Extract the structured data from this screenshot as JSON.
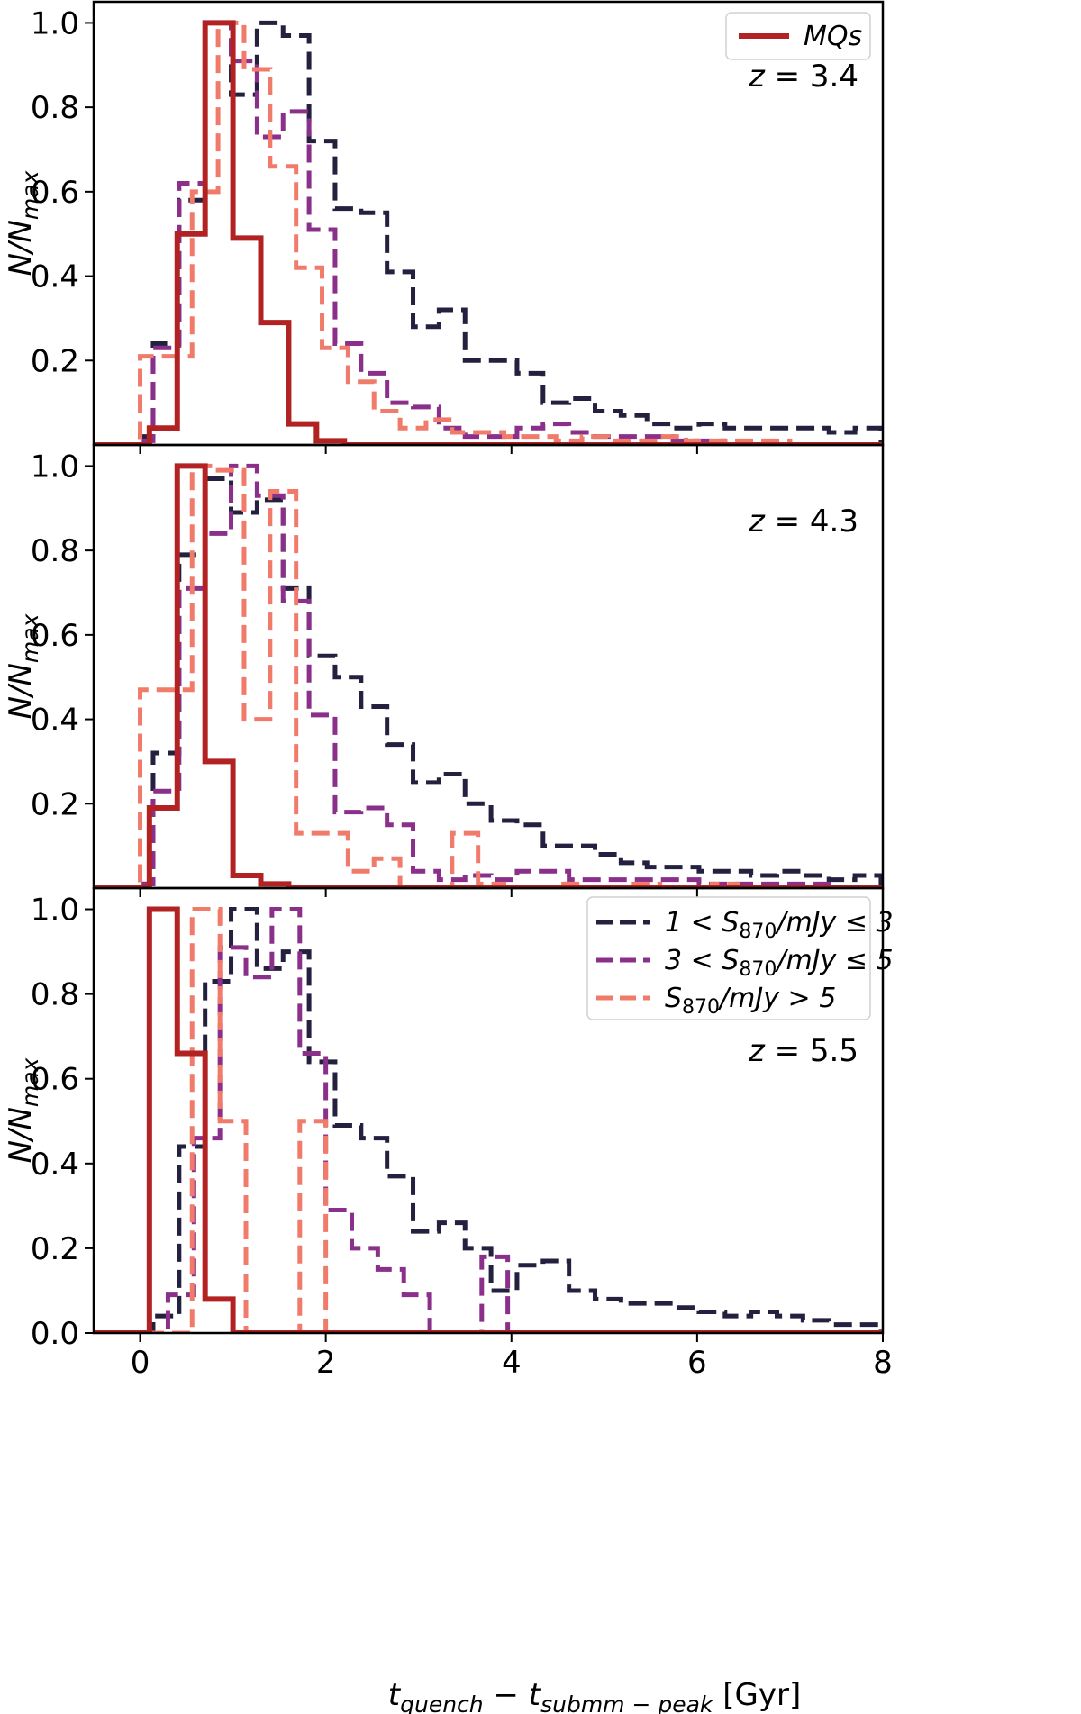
{
  "figure": {
    "xlabel": "t_quench − t_submm−peak [Gyr]",
    "xlabel_parts": {
      "t1": "t",
      "s1": "quench",
      "minus": " − t",
      "s2": "submm − peak",
      "unit": " [Gyr]"
    },
    "ylabel_parts": {
      "n": "N/N",
      "sub": "max"
    }
  },
  "colors": {
    "mqs": "#b22222",
    "bin1": "#23213f",
    "bin2": "#8a2f8a",
    "bin3": "#f07b6b"
  },
  "chart_data": [
    {
      "type": "step-histogram",
      "panel": "top",
      "annotation": "z = 3.4",
      "annotation_parts": {
        "var": "z",
        "eq": " = 3.4"
      },
      "xlim": [
        -0.5,
        8
      ],
      "ylim": [
        0,
        1.05
      ],
      "xticks": [
        0,
        2,
        4,
        6,
        8
      ],
      "yticks": [
        0.2,
        0.4,
        0.6,
        0.8,
        1.0
      ],
      "ytick_labels": [
        "0.2",
        "0.4",
        "0.6",
        "0.8",
        "1.0"
      ],
      "legend": {
        "placement": "top-right",
        "entries": [
          {
            "label": "MQs",
            "series": "mqs"
          }
        ]
      },
      "series": [
        {
          "key": "bin1",
          "name": "1 < S870/mJy ≤ 3",
          "style": "dashed",
          "edges": [
            0,
            0.14,
            0.42,
            0.7,
            0.98,
            1.26,
            1.54,
            1.82,
            2.1,
            2.38,
            2.66,
            2.94,
            3.22,
            3.5,
            3.78,
            4.06,
            4.34,
            4.62,
            4.9,
            5.18,
            5.46,
            5.74,
            6.02,
            6.3,
            6.58,
            6.86,
            7.14,
            7.42,
            7.7,
            7.98
          ],
          "values": [
            0.02,
            0.24,
            0.58,
            1.0,
            0.83,
            1.0,
            0.97,
            0.72,
            0.56,
            0.55,
            0.41,
            0.28,
            0.32,
            0.2,
            0.2,
            0.17,
            0.1,
            0.11,
            0.08,
            0.07,
            0.05,
            0.04,
            0.05,
            0.04,
            0.04,
            0.04,
            0.04,
            0.03,
            0.04
          ]
        },
        {
          "key": "bin2",
          "name": "3 < S870/mJy ≤ 5",
          "style": "dashed",
          "edges": [
            0,
            0.14,
            0.42,
            0.7,
            0.98,
            1.26,
            1.54,
            1.82,
            2.1,
            2.38,
            2.66,
            2.94,
            3.22,
            3.5,
            3.78,
            4.06,
            4.34,
            4.62,
            4.9,
            5.18,
            5.46,
            5.74,
            6.02,
            6.3
          ],
          "values": [
            0.01,
            0.23,
            0.62,
            1.0,
            0.91,
            0.73,
            0.79,
            0.51,
            0.24,
            0.17,
            0.1,
            0.09,
            0.04,
            0.02,
            0.02,
            0.04,
            0.05,
            0.03,
            0.02,
            0.02,
            0.02,
            0.01,
            0.01
          ]
        },
        {
          "key": "bin3",
          "name": "S870/mJy > 5",
          "style": "dashed",
          "edges": [
            0,
            0.56,
            0.84,
            1.12,
            1.4,
            1.68,
            1.96,
            2.24,
            2.52,
            2.8,
            3.08,
            3.36,
            3.64,
            3.92,
            4.2,
            4.48,
            4.76,
            5.04,
            5.32,
            5.6,
            5.88,
            6.16,
            6.44,
            6.72,
            7.0
          ],
          "values": [
            0.21,
            0.6,
            1.0,
            0.89,
            0.66,
            0.42,
            0.23,
            0.15,
            0.08,
            0.04,
            0.06,
            0.03,
            0.03,
            0.02,
            0.02,
            0.01,
            0.02,
            0.01,
            0.01,
            0.02,
            0.01,
            0.01,
            0.01,
            0.01
          ]
        },
        {
          "key": "mqs",
          "name": "MQs",
          "style": "solid",
          "edges": [
            0.1,
            0.4,
            0.7,
            1.0,
            1.3,
            1.6,
            1.9,
            2.2
          ],
          "values": [
            0.04,
            0.5,
            1.0,
            0.49,
            0.29,
            0.05,
            0.01
          ]
        }
      ]
    },
    {
      "type": "step-histogram",
      "panel": "middle",
      "annotation": "z = 4.3",
      "annotation_parts": {
        "var": "z",
        "eq": " = 4.3"
      },
      "xlim": [
        -0.5,
        8
      ],
      "ylim": [
        0,
        1.05
      ],
      "xticks": [
        0,
        2,
        4,
        6,
        8
      ],
      "yticks": [
        0.2,
        0.4,
        0.6,
        0.8,
        1.0
      ],
      "ytick_labels": [
        "0.2",
        "0.4",
        "0.6",
        "0.8",
        "1.0"
      ],
      "series": [
        {
          "key": "bin1",
          "name": "1 < S870/mJy ≤ 3",
          "style": "dashed",
          "edges": [
            0,
            0.14,
            0.42,
            0.7,
            0.98,
            1.26,
            1.54,
            1.82,
            2.1,
            2.38,
            2.66,
            2.94,
            3.22,
            3.5,
            3.78,
            4.06,
            4.34,
            4.62,
            4.9,
            5.18,
            5.46,
            5.74,
            6.02,
            6.3,
            6.58,
            6.86,
            7.14,
            7.42,
            7.7,
            7.98
          ],
          "values": [
            0.01,
            0.32,
            0.79,
            0.97,
            0.89,
            0.92,
            0.71,
            0.55,
            0.5,
            0.43,
            0.34,
            0.25,
            0.27,
            0.2,
            0.16,
            0.15,
            0.1,
            0.1,
            0.08,
            0.06,
            0.05,
            0.05,
            0.04,
            0.04,
            0.03,
            0.04,
            0.03,
            0.02,
            0.03
          ]
        },
        {
          "key": "bin2",
          "name": "3 < S870/mJy ≤ 5",
          "style": "dashed",
          "edges": [
            0,
            0.14,
            0.42,
            0.7,
            0.98,
            1.26,
            1.54,
            1.82,
            2.1,
            2.38,
            2.66,
            2.94,
            3.22,
            3.5,
            3.78,
            4.06,
            4.34,
            4.62,
            4.9,
            5.18,
            5.46,
            5.74,
            6.02,
            6.3,
            6.58,
            6.86,
            7.14,
            7.42
          ],
          "values": [
            0.01,
            0.23,
            0.71,
            0.84,
            1.0,
            0.93,
            0.68,
            0.41,
            0.18,
            0.19,
            0.15,
            0.04,
            0.02,
            0.03,
            0.02,
            0.04,
            0.04,
            0.02,
            0.02,
            0.02,
            0.02,
            0.02,
            0.01,
            0.01,
            0.01,
            0.01,
            0.01
          ]
        },
        {
          "key": "bin3",
          "name": "S870/mJy > 5",
          "style": "dashed",
          "edges": [
            0,
            0.56,
            0.84,
            1.12,
            1.4,
            1.68,
            1.96,
            2.24,
            2.52,
            2.8,
            3.08,
            3.36,
            3.64,
            3.92,
            4.2,
            4.48,
            4.76,
            5.04,
            5.32,
            5.6,
            5.88,
            6.16,
            6.44,
            6.72,
            7.0
          ],
          "values": [
            0.47,
            1.0,
            0.99,
            0.4,
            0.94,
            0.13,
            0.13,
            0.04,
            0.07,
            0.0,
            0.0,
            0.13,
            0.01,
            0.0,
            0.0,
            0.01,
            0.0,
            0.0,
            0.01,
            0.0,
            0.0,
            0.01,
            0.0,
            0.0
          ]
        },
        {
          "key": "mqs",
          "name": "MQs",
          "style": "solid",
          "edges": [
            0.1,
            0.4,
            0.7,
            1.0,
            1.3,
            1.6
          ],
          "values": [
            0.19,
            1.0,
            0.3,
            0.03,
            0.01
          ]
        }
      ]
    },
    {
      "type": "step-histogram",
      "panel": "bottom",
      "annotation": "z = 5.5",
      "annotation_parts": {
        "var": "z",
        "eq": " = 5.5"
      },
      "xlim": [
        -0.5,
        8
      ],
      "ylim": [
        0,
        1.05
      ],
      "xticks": [
        0,
        2,
        4,
        6,
        8
      ],
      "xtick_labels": [
        "0",
        "2",
        "4",
        "6",
        "8"
      ],
      "yticks": [
        0.0,
        0.2,
        0.4,
        0.6,
        0.8,
        1.0
      ],
      "ytick_labels": [
        "0.0",
        "0.2",
        "0.4",
        "0.6",
        "0.8",
        "1.0"
      ],
      "legend": {
        "placement": "top-right",
        "entries": [
          {
            "series": "bin1",
            "pre": "1 < S",
            "sub": "870",
            "post": "/mJy ≤ 3"
          },
          {
            "series": "bin2",
            "pre": "3 < S",
            "sub": "870",
            "post": "/mJy ≤ 5"
          },
          {
            "series": "bin3",
            "pre": "S",
            "sub": "870",
            "post": "/mJy > 5"
          }
        ]
      },
      "series": [
        {
          "key": "bin1",
          "name": "1 < S870/mJy ≤ 3",
          "style": "dashed",
          "edges": [
            0.14,
            0.42,
            0.7,
            0.98,
            1.26,
            1.54,
            1.82,
            2.1,
            2.38,
            2.66,
            2.94,
            3.22,
            3.5,
            3.78,
            4.06,
            4.34,
            4.62,
            4.9,
            5.18,
            5.46,
            5.74,
            6.02,
            6.3,
            6.58,
            6.86,
            7.14,
            7.42,
            7.7,
            7.98
          ],
          "values": [
            0.04,
            0.44,
            0.83,
            1.0,
            0.86,
            0.9,
            0.64,
            0.49,
            0.46,
            0.37,
            0.24,
            0.26,
            0.2,
            0.1,
            0.16,
            0.17,
            0.1,
            0.08,
            0.07,
            0.07,
            0.06,
            0.05,
            0.04,
            0.05,
            0.04,
            0.03,
            0.02,
            0.02
          ]
        },
        {
          "key": "bin2",
          "name": "3 < S870/mJy ≤ 5",
          "style": "dashed",
          "edges": [
            0.3,
            0.58,
            0.86,
            1.14,
            1.42,
            1.72,
            2.0,
            2.28,
            2.56,
            2.84,
            3.12,
            3.4,
            3.68,
            3.96
          ],
          "values": [
            0.09,
            0.46,
            0.91,
            0.84,
            1.0,
            0.66,
            0.29,
            0.2,
            0.15,
            0.09,
            0.0,
            0.0,
            0.18
          ]
        },
        {
          "key": "bin3",
          "name": "S870/mJy > 5",
          "style": "dashed",
          "edges": [
            0.56,
            0.86,
            1.14,
            1.44,
            1.72,
            2.0
          ],
          "values": [
            1.0,
            0.5,
            0.0,
            0.0,
            0.5
          ]
        },
        {
          "key": "mqs",
          "name": "MQs",
          "style": "solid",
          "edges": [
            0.1,
            0.4,
            0.7,
            1.0
          ],
          "values": [
            1.0,
            0.66,
            0.08
          ]
        }
      ]
    }
  ]
}
